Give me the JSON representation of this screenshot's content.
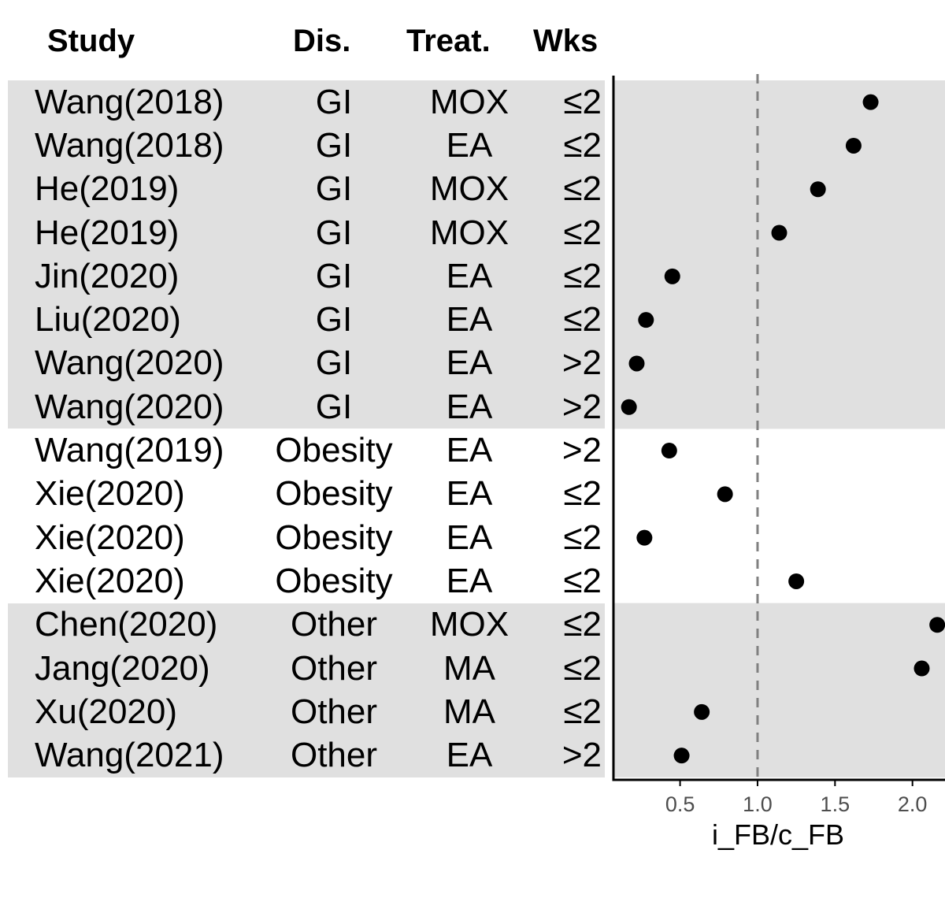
{
  "headers": {
    "study": "Study",
    "disease": "Dis.",
    "treatment": "Treat.",
    "weeks": "Wks"
  },
  "rows": [
    {
      "study": "Wang(2018)",
      "disease": "GI",
      "treatment": "MOX",
      "weeks": "≤2"
    },
    {
      "study": "Wang(2018)",
      "disease": "GI",
      "treatment": "EA",
      "weeks": "≤2"
    },
    {
      "study": "He(2019)",
      "disease": "GI",
      "treatment": "MOX",
      "weeks": "≤2"
    },
    {
      "study": "He(2019)",
      "disease": "GI",
      "treatment": "MOX",
      "weeks": "≤2"
    },
    {
      "study": "Jin(2020)",
      "disease": "GI",
      "treatment": "EA",
      "weeks": "≤2"
    },
    {
      "study": "Liu(2020)",
      "disease": "GI",
      "treatment": "EA",
      "weeks": "≤2"
    },
    {
      "study": "Wang(2020)",
      "disease": "GI",
      "treatment": "EA",
      "weeks": ">2"
    },
    {
      "study": "Wang(2020)",
      "disease": "GI",
      "treatment": "EA",
      "weeks": ">2"
    },
    {
      "study": "Wang(2019)",
      "disease": "Obesity",
      "treatment": "EA",
      "weeks": ">2"
    },
    {
      "study": "Xie(2020)",
      "disease": "Obesity",
      "treatment": "EA",
      "weeks": "≤2"
    },
    {
      "study": "Xie(2020)",
      "disease": "Obesity",
      "treatment": "EA",
      "weeks": "≤2"
    },
    {
      "study": "Xie(2020)",
      "disease": "Obesity",
      "treatment": "EA",
      "weeks": "≤2"
    },
    {
      "study": "Chen(2020)",
      "disease": "Other",
      "treatment": "MOX",
      "weeks": "≤2"
    },
    {
      "study": "Jang(2020)",
      "disease": "Other",
      "treatment": "MA",
      "weeks": "≤2"
    },
    {
      "study": "Xu(2020)",
      "disease": "Other",
      "treatment": "MA",
      "weeks": "≤2"
    },
    {
      "study": "Wang(2021)",
      "disease": "Other",
      "treatment": "EA",
      "weeks": ">2"
    }
  ],
  "chart_data": {
    "type": "scatter",
    "xlabel": "i_FB/c_FB",
    "ylabel": "",
    "xlim": [
      0.07,
      2.21
    ],
    "xticks": [
      0.5,
      1.0,
      1.5,
      2.0
    ],
    "xtick_labels": [
      "0.5",
      "1.0",
      "1.5",
      "2.0"
    ],
    "reference_line": {
      "x": 1.0,
      "style": "dashed",
      "color": "#808080"
    },
    "categories": [
      "Wang(2018)",
      "Wang(2018)",
      "He(2019)",
      "He(2019)",
      "Jin(2020)",
      "Liu(2020)",
      "Wang(2020)",
      "Wang(2020)",
      "Wang(2019)",
      "Xie(2020)",
      "Xie(2020)",
      "Xie(2020)",
      "Chen(2020)",
      "Jang(2020)",
      "Xu(2020)",
      "Wang(2021)"
    ],
    "values": [
      1.73,
      1.62,
      1.39,
      1.14,
      0.45,
      0.28,
      0.22,
      0.17,
      0.43,
      0.79,
      0.27,
      1.25,
      2.16,
      2.06,
      0.64,
      0.51
    ],
    "groups": [
      {
        "name": "GI",
        "start": 0,
        "end": 7,
        "shaded": true
      },
      {
        "name": "Obesity",
        "start": 8,
        "end": 11,
        "shaded": false
      },
      {
        "name": "Other",
        "start": 12,
        "end": 15,
        "shaded": true
      }
    ],
    "colors": {
      "band": "#e0e0e0",
      "point": "#000000",
      "axis": "#000000",
      "ref_line": "#808080",
      "tick_label": "#4d4d4d"
    },
    "grid": false,
    "legend": "none"
  }
}
